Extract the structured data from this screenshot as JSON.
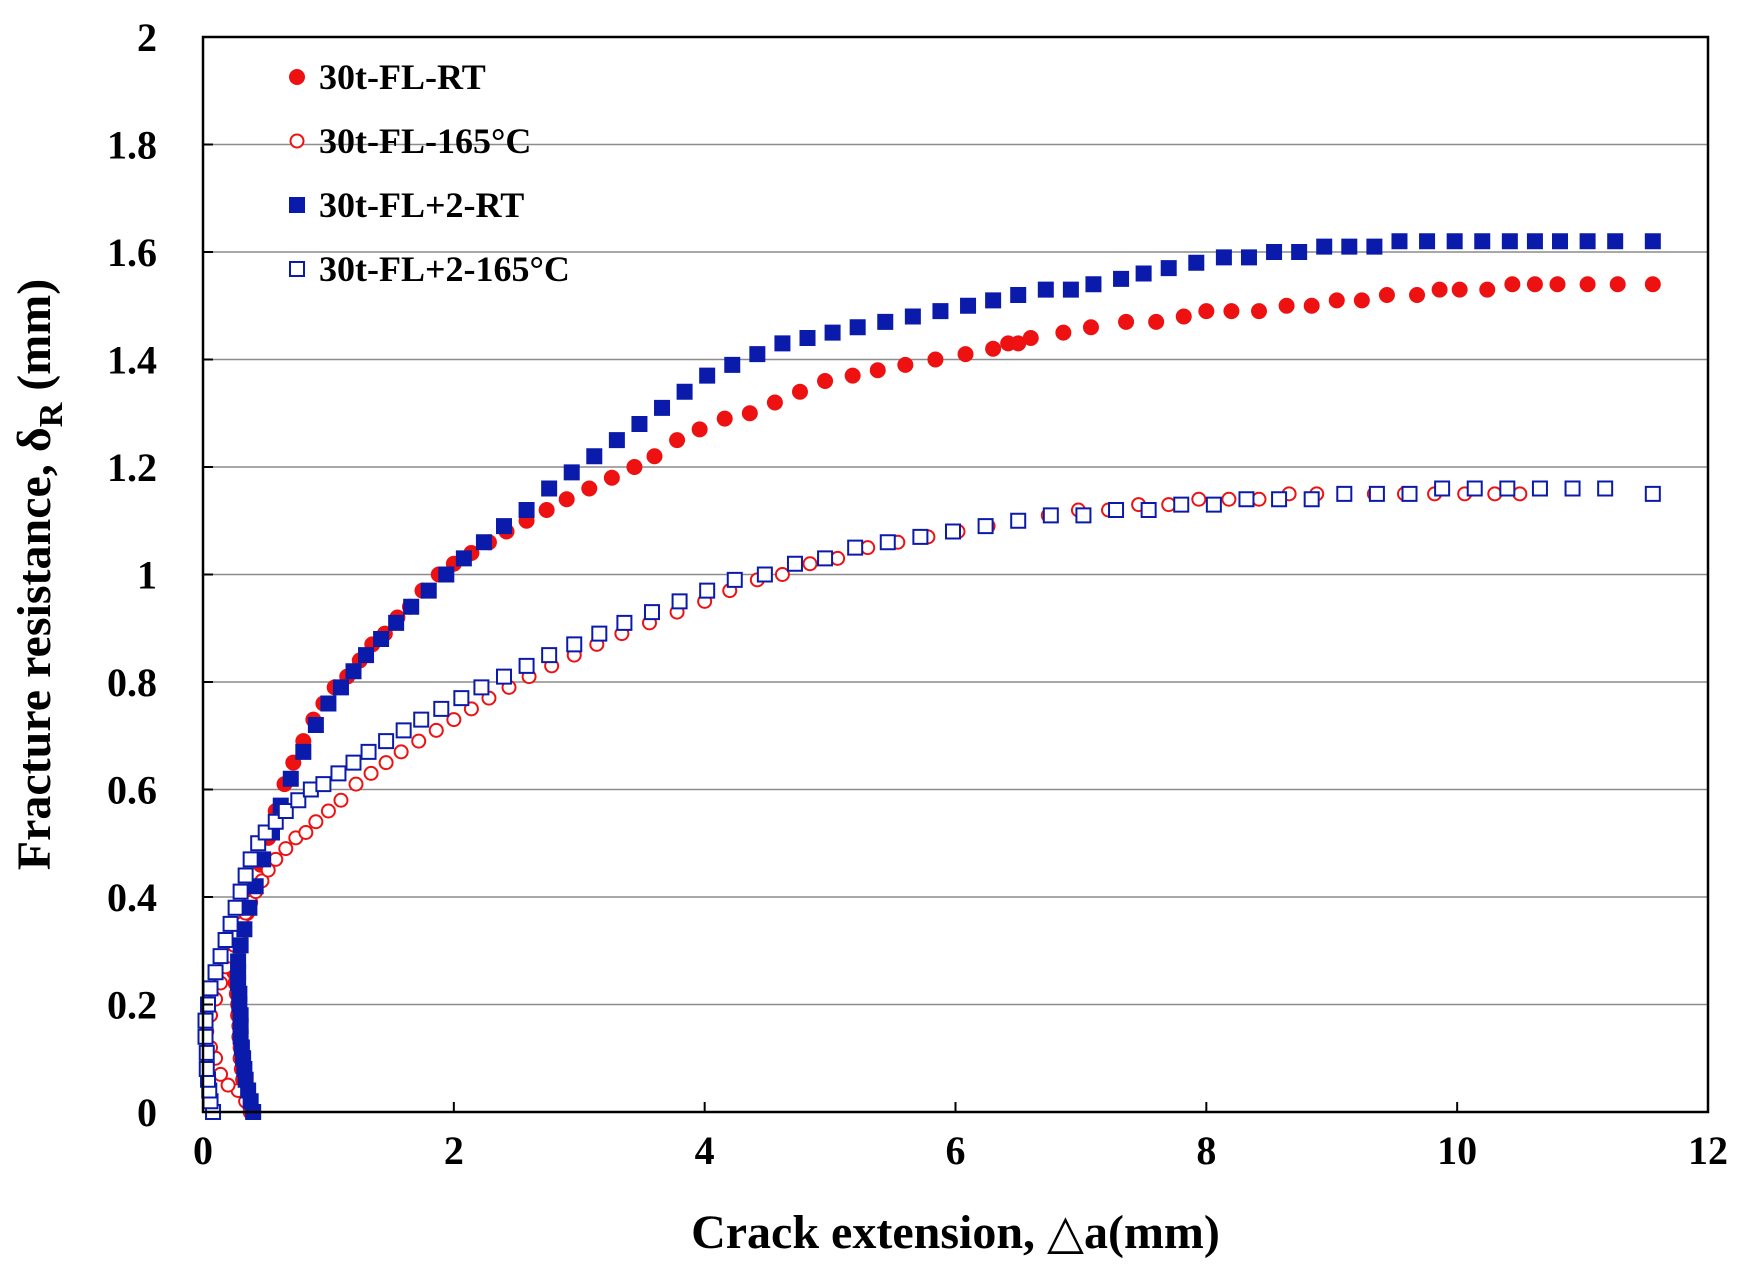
{
  "chart_data": {
    "type": "scatter",
    "title": "",
    "xlabel": "Crack extension, △a(mm)",
    "ylabel_main": "Fracture resistance, δ",
    "ylabel_sub": "R",
    "ylabel_unit": " (mm)",
    "xlim": [
      0,
      12
    ],
    "ylim": [
      0,
      2
    ],
    "x_ticks": [
      0,
      2,
      4,
      6,
      8,
      10,
      12
    ],
    "x_tick_labels": [
      "0",
      "2",
      "4",
      "6",
      "8",
      "10",
      "12"
    ],
    "y_ticks": [
      0,
      0.2,
      0.4,
      0.6,
      0.8,
      1,
      1.2,
      1.4,
      1.6,
      1.8,
      2
    ],
    "y_tick_labels": [
      "0",
      "0.2",
      "0.4",
      "0.6",
      "0.8",
      "1",
      "1.2",
      "1.4",
      "1.6",
      "1.8",
      "2"
    ],
    "grid": "horizontal",
    "legend_position": "top-left",
    "series": [
      {
        "name": "30t-FL-RT",
        "marker": "circle",
        "filled": true,
        "color": "#ee1111",
        "x": [
          0.38,
          0.36,
          0.34,
          0.32,
          0.31,
          0.3,
          0.3,
          0.29,
          0.29,
          0.28,
          0.28,
          0.27,
          0.26,
          0.25,
          0.25,
          0.27,
          0.3,
          0.35,
          0.4,
          0.46,
          0.52,
          0.58,
          0.65,
          0.72,
          0.8,
          0.88,
          0.96,
          1.05,
          1.15,
          1.25,
          1.35,
          1.45,
          1.55,
          1.65,
          1.75,
          1.88,
          2.0,
          2.14,
          2.28,
          2.42,
          2.58,
          2.74,
          2.9,
          3.08,
          3.26,
          3.44,
          3.6,
          3.78,
          3.96,
          4.16,
          4.36,
          4.56,
          4.76,
          4.96,
          5.18,
          5.38,
          5.6,
          5.84,
          6.08,
          6.3,
          6.42,
          6.5,
          6.6,
          6.86,
          7.08,
          7.36,
          7.6,
          7.82,
          8.0,
          8.2,
          8.42,
          8.64,
          8.84,
          9.04,
          9.24,
          9.44,
          9.68,
          9.86,
          10.02,
          10.24,
          10.44,
          10.62,
          10.8,
          11.04,
          11.28,
          11.56
        ],
        "y": [
          0.0,
          0.02,
          0.04,
          0.06,
          0.08,
          0.1,
          0.12,
          0.14,
          0.16,
          0.18,
          0.2,
          0.22,
          0.24,
          0.26,
          0.28,
          0.3,
          0.33,
          0.37,
          0.41,
          0.46,
          0.51,
          0.56,
          0.61,
          0.65,
          0.69,
          0.73,
          0.76,
          0.79,
          0.81,
          0.84,
          0.87,
          0.89,
          0.92,
          0.94,
          0.97,
          1.0,
          1.02,
          1.04,
          1.06,
          1.08,
          1.1,
          1.12,
          1.14,
          1.16,
          1.18,
          1.2,
          1.22,
          1.25,
          1.27,
          1.29,
          1.3,
          1.32,
          1.34,
          1.36,
          1.37,
          1.38,
          1.39,
          1.4,
          1.41,
          1.42,
          1.43,
          1.43,
          1.44,
          1.45,
          1.46,
          1.47,
          1.47,
          1.48,
          1.49,
          1.49,
          1.49,
          1.5,
          1.5,
          1.51,
          1.51,
          1.52,
          1.52,
          1.53,
          1.53,
          1.53,
          1.54,
          1.54,
          1.54,
          1.54,
          1.54,
          1.54
        ]
      },
      {
        "name": "30t-FL-165°C",
        "marker": "circle",
        "filled": false,
        "color": "#ee1111",
        "x": [
          0.4,
          0.34,
          0.28,
          0.2,
          0.14,
          0.1,
          0.06,
          0.03,
          0.06,
          0.1,
          0.14,
          0.18,
          0.22,
          0.25,
          0.28,
          0.31,
          0.34,
          0.38,
          0.42,
          0.47,
          0.52,
          0.58,
          0.66,
          0.74,
          0.82,
          0.9,
          1.0,
          1.1,
          1.22,
          1.34,
          1.46,
          1.58,
          1.72,
          1.86,
          2.0,
          2.14,
          2.28,
          2.44,
          2.6,
          2.78,
          2.96,
          3.14,
          3.34,
          3.56,
          3.78,
          4.0,
          4.2,
          4.42,
          4.62,
          4.84,
          5.06,
          5.3,
          5.54,
          5.78,
          6.02,
          6.26,
          6.5,
          6.74,
          6.98,
          7.22,
          7.46,
          7.7,
          7.94,
          8.18,
          8.42,
          8.66,
          8.88,
          9.1,
          9.34,
          9.58,
          9.82,
          10.06,
          10.3,
          10.5
        ],
        "y": [
          0.0,
          0.02,
          0.04,
          0.05,
          0.07,
          0.1,
          0.12,
          0.15,
          0.18,
          0.21,
          0.24,
          0.27,
          0.29,
          0.31,
          0.33,
          0.35,
          0.37,
          0.39,
          0.41,
          0.43,
          0.45,
          0.47,
          0.49,
          0.51,
          0.52,
          0.54,
          0.56,
          0.58,
          0.61,
          0.63,
          0.65,
          0.67,
          0.69,
          0.71,
          0.73,
          0.75,
          0.77,
          0.79,
          0.81,
          0.83,
          0.85,
          0.87,
          0.89,
          0.91,
          0.93,
          0.95,
          0.97,
          0.99,
          1.0,
          1.02,
          1.03,
          1.05,
          1.06,
          1.07,
          1.08,
          1.09,
          1.1,
          1.11,
          1.12,
          1.12,
          1.13,
          1.13,
          1.14,
          1.14,
          1.14,
          1.15,
          1.15,
          1.15,
          1.15,
          1.15,
          1.15,
          1.15,
          1.15,
          1.15
        ]
      },
      {
        "name": "30t-FL+2-RT",
        "marker": "square",
        "filled": true,
        "color": "#0a1aaa",
        "x": [
          0.4,
          0.38,
          0.36,
          0.34,
          0.33,
          0.32,
          0.31,
          0.3,
          0.3,
          0.3,
          0.29,
          0.29,
          0.28,
          0.28,
          0.28,
          0.3,
          0.33,
          0.37,
          0.42,
          0.48,
          0.55,
          0.62,
          0.7,
          0.8,
          0.9,
          1.0,
          1.1,
          1.2,
          1.3,
          1.42,
          1.54,
          1.66,
          1.8,
          1.94,
          2.08,
          2.24,
          2.4,
          2.58,
          2.76,
          2.94,
          3.12,
          3.3,
          3.48,
          3.66,
          3.84,
          4.02,
          4.22,
          4.42,
          4.62,
          4.82,
          5.02,
          5.22,
          5.44,
          5.66,
          5.88,
          6.1,
          6.3,
          6.5,
          6.72,
          6.92,
          7.1,
          7.32,
          7.5,
          7.7,
          7.92,
          8.14,
          8.34,
          8.54,
          8.74,
          8.94,
          9.14,
          9.34,
          9.54,
          9.76,
          9.98,
          10.2,
          10.42,
          10.62,
          10.82,
          11.04,
          11.26,
          11.56
        ],
        "y": [
          0.0,
          0.02,
          0.04,
          0.06,
          0.08,
          0.1,
          0.12,
          0.14,
          0.16,
          0.18,
          0.2,
          0.22,
          0.24,
          0.26,
          0.28,
          0.31,
          0.34,
          0.38,
          0.42,
          0.47,
          0.52,
          0.57,
          0.62,
          0.67,
          0.72,
          0.76,
          0.79,
          0.82,
          0.85,
          0.88,
          0.91,
          0.94,
          0.97,
          1.0,
          1.03,
          1.06,
          1.09,
          1.12,
          1.16,
          1.19,
          1.22,
          1.25,
          1.28,
          1.31,
          1.34,
          1.37,
          1.39,
          1.41,
          1.43,
          1.44,
          1.45,
          1.46,
          1.47,
          1.48,
          1.49,
          1.5,
          1.51,
          1.52,
          1.53,
          1.53,
          1.54,
          1.55,
          1.56,
          1.57,
          1.58,
          1.59,
          1.59,
          1.6,
          1.6,
          1.61,
          1.61,
          1.61,
          1.62,
          1.62,
          1.62,
          1.62,
          1.62,
          1.62,
          1.62,
          1.62,
          1.62,
          1.62
        ]
      },
      {
        "name": "30t-FL+2-165°C",
        "marker": "square",
        "filled": false,
        "color": "#0a1aaa",
        "x": [
          0.08,
          0.06,
          0.05,
          0.04,
          0.03,
          0.03,
          0.02,
          0.02,
          0.04,
          0.06,
          0.1,
          0.14,
          0.18,
          0.22,
          0.26,
          0.3,
          0.34,
          0.38,
          0.44,
          0.5,
          0.58,
          0.66,
          0.76,
          0.86,
          0.96,
          1.08,
          1.2,
          1.32,
          1.46,
          1.6,
          1.74,
          1.9,
          2.06,
          2.22,
          2.4,
          2.58,
          2.76,
          2.96,
          3.16,
          3.36,
          3.58,
          3.8,
          4.02,
          4.24,
          4.48,
          4.72,
          4.96,
          5.2,
          5.46,
          5.72,
          5.98,
          6.24,
          6.5,
          6.76,
          7.02,
          7.28,
          7.54,
          7.8,
          8.06,
          8.32,
          8.58,
          8.84,
          9.1,
          9.36,
          9.62,
          9.88,
          10.14,
          10.4,
          10.66,
          10.92,
          11.18,
          11.56
        ],
        "y": [
          0.0,
          0.02,
          0.04,
          0.06,
          0.08,
          0.11,
          0.14,
          0.17,
          0.2,
          0.23,
          0.26,
          0.29,
          0.32,
          0.35,
          0.38,
          0.41,
          0.44,
          0.47,
          0.5,
          0.52,
          0.54,
          0.56,
          0.58,
          0.6,
          0.61,
          0.63,
          0.65,
          0.67,
          0.69,
          0.71,
          0.73,
          0.75,
          0.77,
          0.79,
          0.81,
          0.83,
          0.85,
          0.87,
          0.89,
          0.91,
          0.93,
          0.95,
          0.97,
          0.99,
          1.0,
          1.02,
          1.03,
          1.05,
          1.06,
          1.07,
          1.08,
          1.09,
          1.1,
          1.11,
          1.11,
          1.12,
          1.12,
          1.13,
          1.13,
          1.14,
          1.14,
          1.14,
          1.15,
          1.15,
          1.15,
          1.16,
          1.16,
          1.16,
          1.16,
          1.16,
          1.16,
          1.15
        ]
      }
    ]
  }
}
